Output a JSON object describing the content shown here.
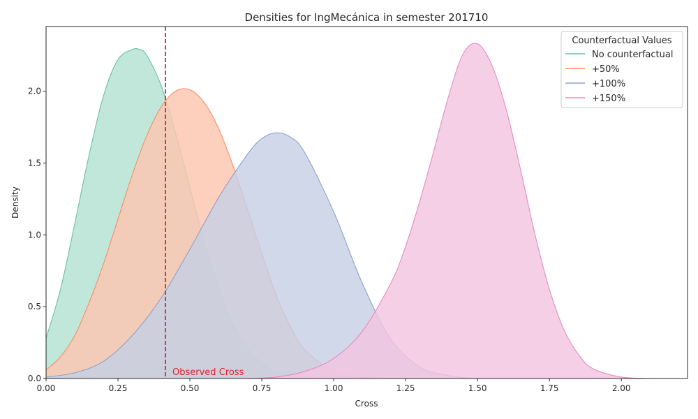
{
  "chart_data": {
    "type": "area",
    "title": "Densities for IngMecánica in semester 201710",
    "xlabel": "Cross",
    "ylabel": "Density",
    "xlim": [
      0,
      2.23
    ],
    "ylim": [
      0,
      2.45
    ],
    "xticks": [
      "0.00",
      "0.25",
      "0.50",
      "0.75",
      "1.00",
      "1.25",
      "1.50",
      "1.75",
      "2.00"
    ],
    "xtick_values": [
      0,
      0.25,
      0.5,
      0.75,
      1.0,
      1.25,
      1.5,
      1.75,
      2.0
    ],
    "yticks": [
      "0.0",
      "0.5",
      "1.0",
      "1.5",
      "2.0"
    ],
    "ytick_values": [
      0,
      0.5,
      1.0,
      1.5,
      2.0
    ],
    "grid": false,
    "legend": {
      "title": "Counterfactual Values",
      "placement": "top-right"
    },
    "series": [
      {
        "name": "No counterfactual",
        "color": "#66c2a5",
        "fill": "#b3e1d2",
        "x": [
          0.0,
          0.05,
          0.1,
          0.15,
          0.2,
          0.25,
          0.3,
          0.325,
          0.35,
          0.4,
          0.45,
          0.5,
          0.55,
          0.6,
          0.65,
          0.7,
          0.75,
          0.8,
          0.9,
          1.0,
          1.1,
          1.2
        ],
        "y": [
          0.28,
          0.62,
          1.08,
          1.56,
          1.97,
          2.22,
          2.29,
          2.29,
          2.25,
          2.04,
          1.71,
          1.33,
          0.95,
          0.63,
          0.38,
          0.21,
          0.11,
          0.05,
          0.01,
          0.0,
          0.0,
          0.0
        ]
      },
      {
        "name": "+50%",
        "color": "#fc8d62",
        "fill": "#fdc6b0",
        "x": [
          0.0,
          0.05,
          0.1,
          0.15,
          0.2,
          0.25,
          0.3,
          0.35,
          0.4,
          0.45,
          0.5,
          0.55,
          0.6,
          0.65,
          0.7,
          0.75,
          0.8,
          0.85,
          0.9,
          1.0,
          1.1,
          1.2,
          1.3
        ],
        "y": [
          0.06,
          0.15,
          0.3,
          0.53,
          0.8,
          1.11,
          1.42,
          1.69,
          1.89,
          2.0,
          2.01,
          1.92,
          1.74,
          1.48,
          1.18,
          0.87,
          0.58,
          0.36,
          0.2,
          0.05,
          0.01,
          0.0,
          0.0
        ]
      },
      {
        "name": "+100%",
        "color": "#8da0cb",
        "fill": "#c6cfe5",
        "x": [
          0.0,
          0.1,
          0.2,
          0.3,
          0.4,
          0.5,
          0.6,
          0.7,
          0.75,
          0.8,
          0.85,
          0.9,
          1.0,
          1.1,
          1.2,
          1.3,
          1.4,
          1.5,
          1.56
        ],
        "y": [
          0.01,
          0.04,
          0.12,
          0.3,
          0.56,
          0.9,
          1.26,
          1.56,
          1.67,
          1.71,
          1.68,
          1.57,
          1.16,
          0.66,
          0.27,
          0.08,
          0.02,
          0.0,
          0.0
        ]
      },
      {
        "name": "+150%",
        "color": "#e78ac3",
        "fill": "#f3c4e1",
        "x": [
          0.7,
          0.8,
          0.9,
          1.0,
          1.1,
          1.2,
          1.25,
          1.3,
          1.35,
          1.4,
          1.45,
          1.5,
          1.55,
          1.6,
          1.65,
          1.7,
          1.75,
          1.8,
          1.85,
          1.9,
          2.0,
          2.1
        ],
        "y": [
          0.0,
          0.01,
          0.05,
          0.14,
          0.33,
          0.67,
          0.92,
          1.24,
          1.6,
          1.97,
          2.26,
          2.33,
          2.18,
          1.87,
          1.45,
          1.0,
          0.62,
          0.34,
          0.17,
          0.07,
          0.01,
          0.0
        ]
      }
    ],
    "annotation": {
      "text": "Observed Cross",
      "x": 0.415,
      "color": "#d62728"
    }
  }
}
